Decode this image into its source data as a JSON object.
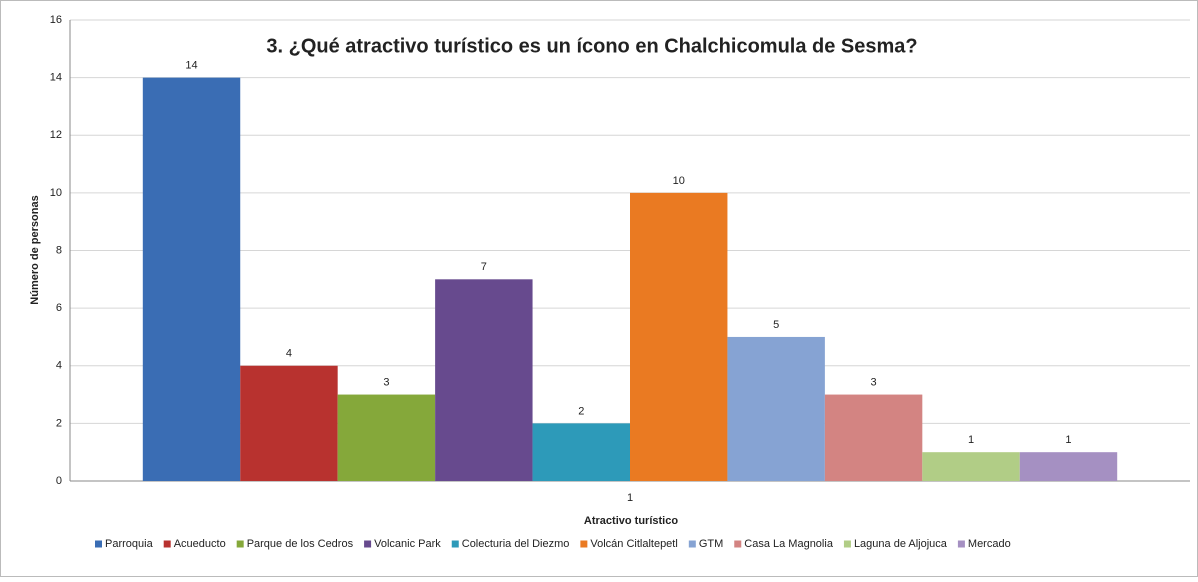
{
  "chart_data": {
    "type": "bar",
    "title": "3. ¿Qué atractivo turístico es un ícono en Chalchicomula de Sesma?",
    "x_label": "Atractivo turístico",
    "y_label": "Número de personas",
    "categories": [
      "1"
    ],
    "series": [
      {
        "name": "Parroquia",
        "color": "#3a6db4",
        "values": [
          14
        ]
      },
      {
        "name": "Acueducto",
        "color": "#b8322f",
        "values": [
          4
        ]
      },
      {
        "name": "Parque de los Cedros",
        "color": "#85a83a",
        "values": [
          3
        ]
      },
      {
        "name": "Volcanic Park",
        "color": "#674a8e",
        "values": [
          7
        ]
      },
      {
        "name": "Colecturia del Diezmo",
        "color": "#2d9ab9",
        "values": [
          2
        ]
      },
      {
        "name": "Volcán Citlaltepetl",
        "color": "#ea7a22",
        "values": [
          10
        ]
      },
      {
        "name": "GTM",
        "color": "#86a3d3",
        "values": [
          5
        ]
      },
      {
        "name": "Casa La Magnolia",
        "color": "#d38482",
        "values": [
          3
        ]
      },
      {
        "name": "Laguna de Aljojuca",
        "color": "#b1cd86",
        "values": [
          1
        ]
      },
      {
        "name": "Mercado",
        "color": "#a590c2",
        "values": [
          1
        ]
      }
    ],
    "ylim": [
      0,
      16
    ],
    "yticks": [
      0,
      2,
      4,
      6,
      8,
      10,
      12,
      14,
      16
    ],
    "grid": true,
    "legend": "bottom"
  }
}
